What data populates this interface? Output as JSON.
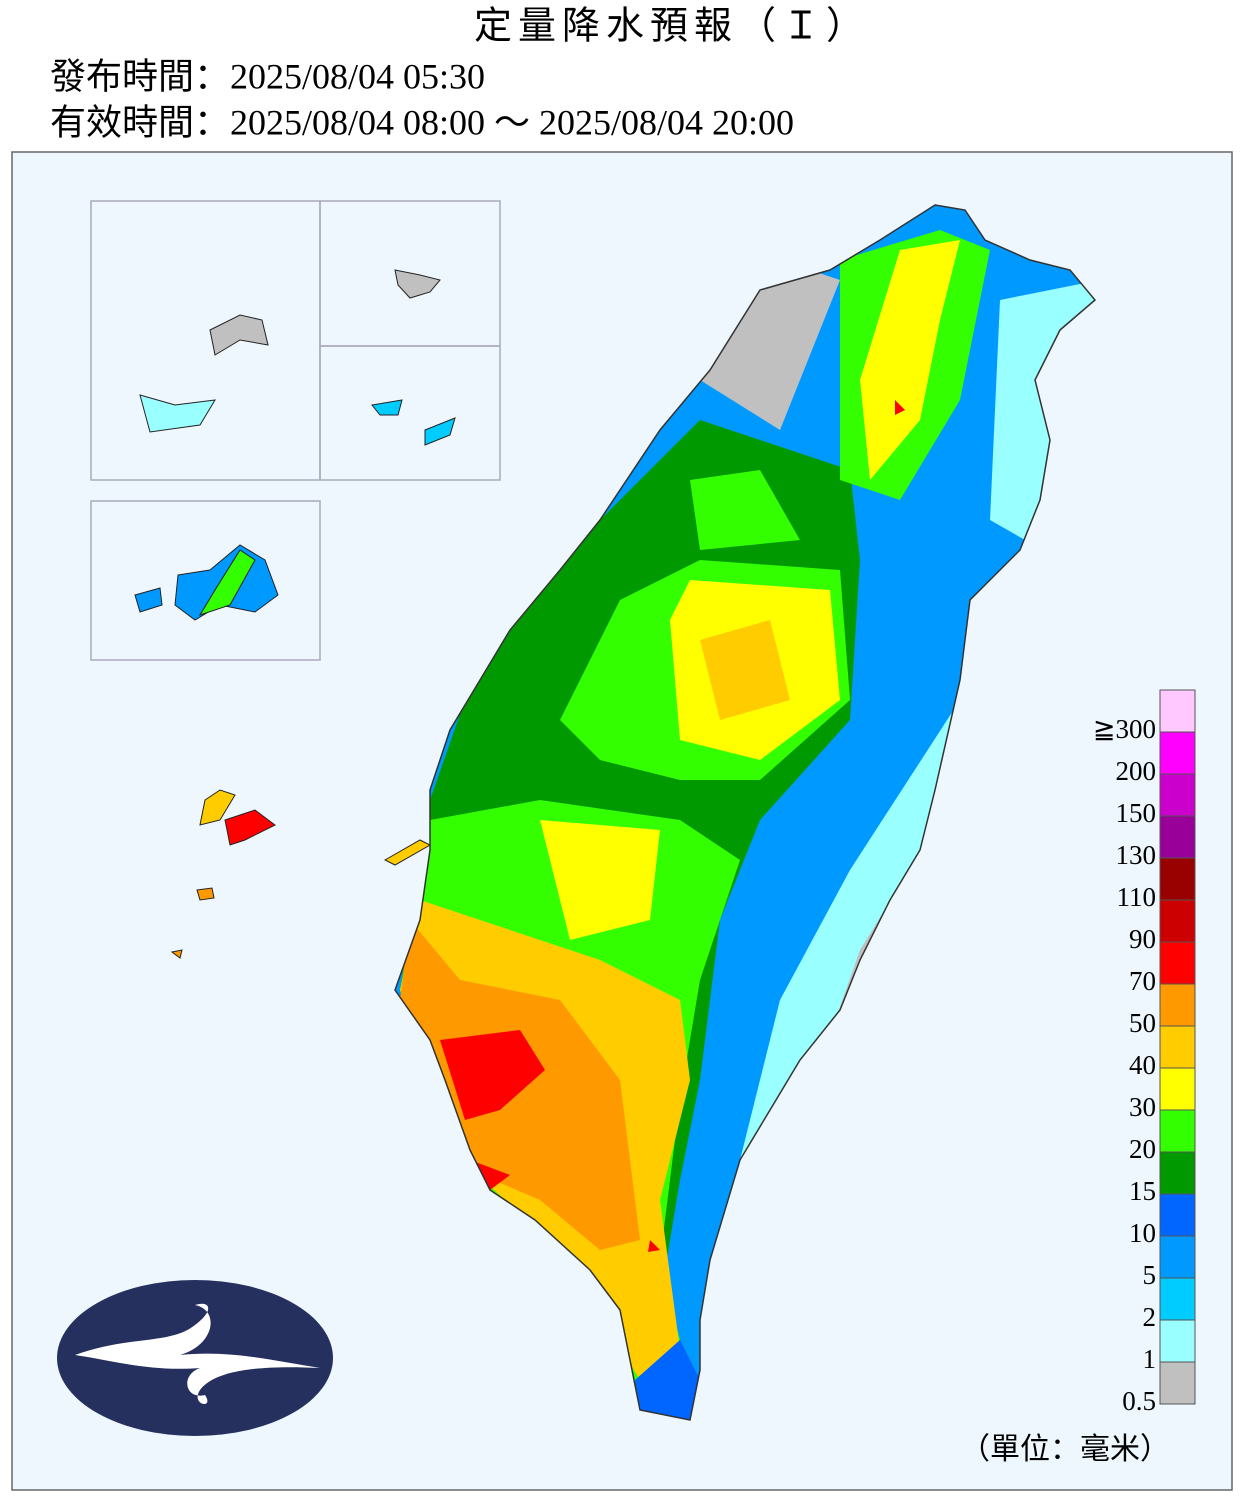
{
  "header": {
    "title": "定量降水預報（Ｉ）",
    "issued": "發布時間：2025/08/04 05:30",
    "valid": "有效時間：2025/08/04 08:00 ～ 2025/08/04 20:00"
  },
  "legend": {
    "unit": "（單位：毫米）",
    "bins": [
      {
        "label": "≧300",
        "color": "#ffc8ff"
      },
      {
        "label": "200",
        "color": "#ff00ff"
      },
      {
        "label": "150",
        "color": "#cc00cc"
      },
      {
        "label": "130",
        "color": "#990099"
      },
      {
        "label": "110",
        "color": "#990000"
      },
      {
        "label": "90",
        "color": "#cc0000"
      },
      {
        "label": "70",
        "color": "#ff0000"
      },
      {
        "label": "50",
        "color": "#ff9900"
      },
      {
        "label": "40",
        "color": "#ffcc00"
      },
      {
        "label": "30",
        "color": "#ffff00"
      },
      {
        "label": "20",
        "color": "#33ff00"
      },
      {
        "label": "15",
        "color": "#009900"
      },
      {
        "label": "10",
        "color": "#0066ff"
      },
      {
        "label": "5",
        "color": "#0099ff"
      },
      {
        "label": "2",
        "color": "#00ccff"
      },
      {
        "label": "1",
        "color": "#99ffff"
      },
      {
        "label": "0.5",
        "color": "#c0c0c0"
      }
    ]
  }
}
